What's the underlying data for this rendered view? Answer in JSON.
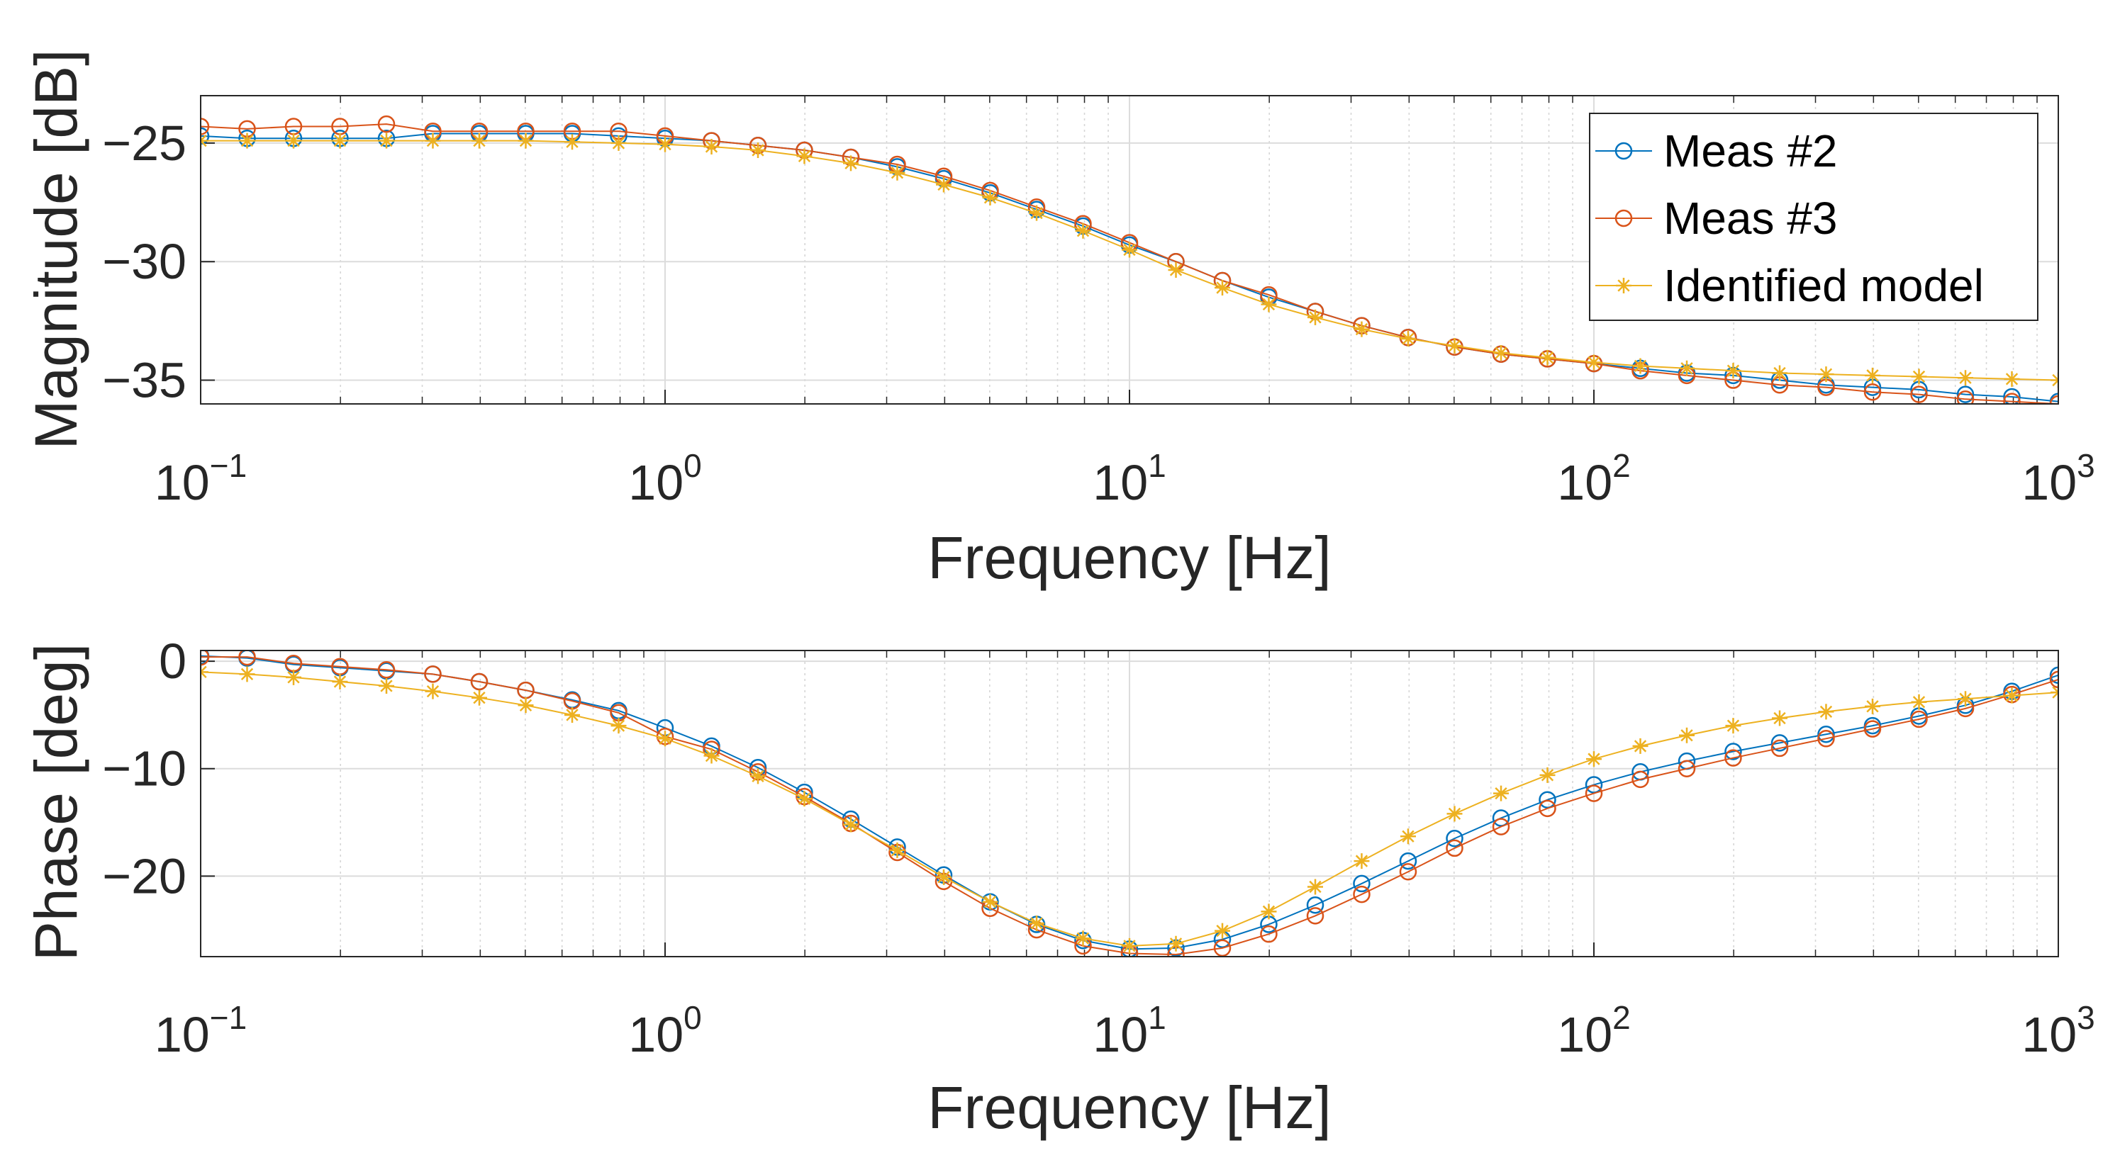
{
  "chart_data": [
    {
      "type": "line",
      "name": "magnitude",
      "xscale": "log",
      "xlim": [
        0.1,
        1000
      ],
      "ylim": [
        -36,
        -23
      ],
      "xlabel": "Frequency [Hz]",
      "ylabel": "Magnitude [dB]",
      "yticks": [
        -35,
        -30,
        -25
      ],
      "ytick_labels": [
        "−35",
        "−30",
        "−25"
      ],
      "xticks": [
        0.1,
        1,
        10,
        100,
        1000
      ],
      "xtick_labels": [
        {
          "base": "10",
          "exp": "−1"
        },
        {
          "base": "10",
          "exp": "0"
        },
        {
          "base": "10",
          "exp": "1"
        },
        {
          "base": "10",
          "exp": "2"
        },
        {
          "base": "10",
          "exp": "3"
        }
      ],
      "grid": true,
      "legend_position": "top-right",
      "x": [
        0.1,
        0.1259,
        0.1585,
        0.1995,
        0.2512,
        0.3162,
        0.3981,
        0.5012,
        0.631,
        0.7943,
        1,
        1.259,
        1.585,
        1.995,
        2.512,
        3.162,
        3.981,
        5.012,
        6.31,
        7.943,
        10,
        12.59,
        15.85,
        19.95,
        25.12,
        31.62,
        39.81,
        50.12,
        63.1,
        79.43,
        100,
        125.9,
        158.5,
        199.5,
        251.2,
        316.2,
        398.1,
        501.2,
        631,
        794.3,
        1000
      ],
      "series": [
        {
          "name": "Meas #2",
          "color": "#0072BD",
          "marker": "circle",
          "values": [
            -24.7,
            -24.8,
            -24.8,
            -24.8,
            -24.8,
            -24.6,
            -24.6,
            -24.6,
            -24.6,
            -24.7,
            -24.8,
            -24.9,
            -25.1,
            -25.3,
            -25.6,
            -26.0,
            -26.5,
            -27.1,
            -27.8,
            -28.5,
            -29.3,
            -30.0,
            -30.8,
            -31.5,
            -32.1,
            -32.7,
            -33.2,
            -33.6,
            -33.9,
            -34.1,
            -34.3,
            -34.5,
            -34.7,
            -34.8,
            -35.0,
            -35.2,
            -35.3,
            -35.4,
            -35.6,
            -35.7,
            -35.9
          ]
        },
        {
          "name": "Meas #3",
          "color": "#D95319",
          "marker": "circle",
          "values": [
            -24.3,
            -24.4,
            -24.3,
            -24.3,
            -24.2,
            -24.5,
            -24.5,
            -24.5,
            -24.5,
            -24.5,
            -24.7,
            -24.9,
            -25.1,
            -25.3,
            -25.6,
            -25.9,
            -26.4,
            -27.0,
            -27.7,
            -28.4,
            -29.2,
            -30.0,
            -30.8,
            -31.4,
            -32.1,
            -32.7,
            -33.2,
            -33.6,
            -33.9,
            -34.1,
            -34.3,
            -34.6,
            -34.8,
            -35.0,
            -35.2,
            -35.3,
            -35.5,
            -35.6,
            -35.8,
            -35.9,
            -36.0
          ]
        },
        {
          "name": "Identified model",
          "color": "#EDB120",
          "marker": "star",
          "values": [
            -24.9,
            -24.9,
            -24.9,
            -24.9,
            -24.9,
            -24.9,
            -24.9,
            -24.9,
            -24.95,
            -25.0,
            -25.05,
            -25.15,
            -25.3,
            -25.55,
            -25.85,
            -26.25,
            -26.75,
            -27.3,
            -27.95,
            -28.7,
            -29.5,
            -30.35,
            -31.1,
            -31.8,
            -32.35,
            -32.85,
            -33.25,
            -33.55,
            -33.85,
            -34.05,
            -34.25,
            -34.4,
            -34.5,
            -34.6,
            -34.7,
            -34.75,
            -34.8,
            -34.85,
            -34.9,
            -34.95,
            -35.0
          ]
        }
      ],
      "legend": [
        "Meas #2",
        "Meas #3",
        "Identified model"
      ]
    },
    {
      "type": "line",
      "name": "phase",
      "xscale": "log",
      "xlim": [
        0.1,
        1000
      ],
      "ylim": [
        -27.5,
        1
      ],
      "xlabel": "Frequency [Hz]",
      "ylabel": "Phase [deg]",
      "yticks": [
        -20,
        -10,
        0
      ],
      "ytick_labels": [
        "−20",
        "−10",
        "0"
      ],
      "xticks": [
        0.1,
        1,
        10,
        100,
        1000
      ],
      "xtick_labels": [
        {
          "base": "10",
          "exp": "−1"
        },
        {
          "base": "10",
          "exp": "0"
        },
        {
          "base": "10",
          "exp": "1"
        },
        {
          "base": "10",
          "exp": "2"
        },
        {
          "base": "10",
          "exp": "3"
        }
      ],
      "grid": true,
      "x": [
        0.1,
        0.1259,
        0.1585,
        0.1995,
        0.2512,
        0.3162,
        0.3981,
        0.5012,
        0.631,
        0.7943,
        1,
        1.259,
        1.585,
        1.995,
        2.512,
        3.162,
        3.981,
        5.012,
        6.31,
        7.943,
        10,
        12.59,
        15.85,
        19.95,
        25.12,
        31.62,
        39.81,
        50.12,
        63.1,
        79.43,
        100,
        125.9,
        158.5,
        199.5,
        251.2,
        316.2,
        398.1,
        501.2,
        631,
        794.3,
        1000
      ],
      "series": [
        {
          "name": "Meas #2",
          "color": "#0072BD",
          "marker": "circle",
          "values": [
            0.5,
            0.3,
            -0.3,
            -0.6,
            -0.9,
            -1.2,
            -1.9,
            -2.7,
            -3.6,
            -4.6,
            -6.2,
            -7.9,
            -9.9,
            -12.2,
            -14.7,
            -17.3,
            -19.9,
            -22.4,
            -24.5,
            -26.0,
            -26.8,
            -26.7,
            -25.9,
            -24.5,
            -22.7,
            -20.7,
            -18.6,
            -16.5,
            -14.6,
            -12.9,
            -11.5,
            -10.3,
            -9.3,
            -8.4,
            -7.6,
            -6.8,
            -6.0,
            -5.1,
            -4.1,
            -2.8,
            -1.3
          ]
        },
        {
          "name": "Meas #3",
          "color": "#D95319",
          "marker": "circle",
          "values": [
            0.4,
            0.4,
            -0.2,
            -0.5,
            -0.8,
            -1.2,
            -1.9,
            -2.7,
            -3.7,
            -4.8,
            -7.0,
            -8.2,
            -10.3,
            -12.6,
            -15.1,
            -17.8,
            -20.5,
            -23.0,
            -25.0,
            -26.5,
            -27.2,
            -27.3,
            -26.7,
            -25.4,
            -23.7,
            -21.7,
            -19.6,
            -17.4,
            -15.4,
            -13.7,
            -12.3,
            -11.0,
            -10.0,
            -9.0,
            -8.1,
            -7.2,
            -6.3,
            -5.4,
            -4.4,
            -3.1,
            -1.7
          ]
        },
        {
          "name": "Identified model",
          "color": "#EDB120",
          "marker": "star",
          "values": [
            -1.0,
            -1.2,
            -1.5,
            -1.9,
            -2.3,
            -2.8,
            -3.4,
            -4.1,
            -5.0,
            -6.0,
            -7.2,
            -8.8,
            -10.7,
            -12.8,
            -15.2,
            -17.6,
            -20.1,
            -22.4,
            -24.4,
            -25.8,
            -26.5,
            -26.3,
            -25.1,
            -23.3,
            -21.0,
            -18.6,
            -16.3,
            -14.2,
            -12.3,
            -10.6,
            -9.1,
            -7.9,
            -6.9,
            -6.0,
            -5.3,
            -4.7,
            -4.2,
            -3.8,
            -3.5,
            -3.2,
            -2.9
          ]
        }
      ]
    }
  ]
}
